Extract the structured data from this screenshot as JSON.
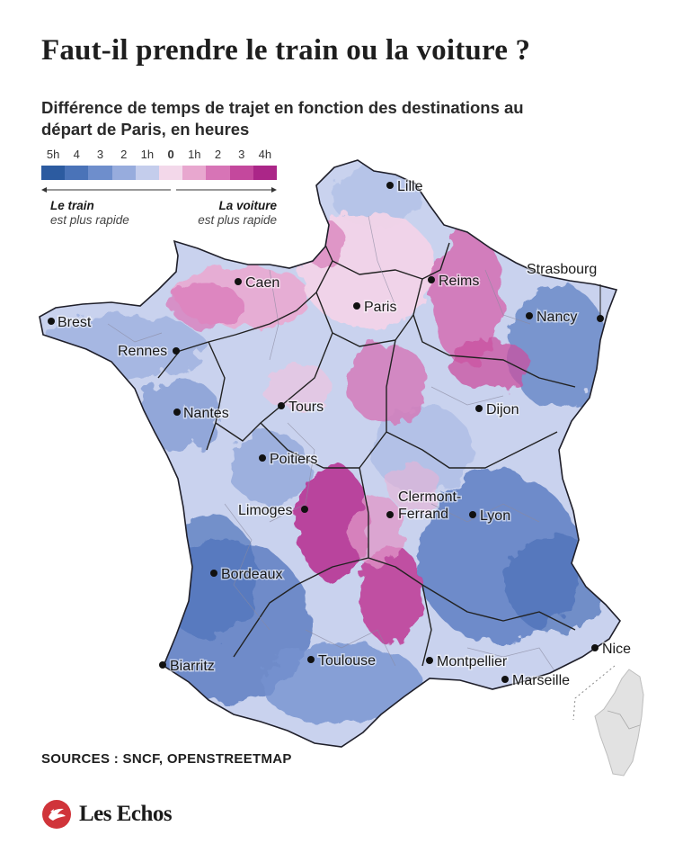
{
  "title": "Faut-il prendre le train ou la voiture ?",
  "subtitle": "Différence de temps de trajet en fonction des destinations au départ de Paris, en heures",
  "legend": {
    "ticks": [
      "5h",
      "4",
      "3",
      "2",
      "1h",
      "0",
      "1h",
      "2",
      "3",
      "4h"
    ],
    "colors": [
      "#2c5ba0",
      "#4a73b8",
      "#6e8ecc",
      "#97acdd",
      "#c4cdec",
      "#f3d8ea",
      "#e8a7cf",
      "#d774b6",
      "#c4489d",
      "#ab2688"
    ],
    "left_caption_bold": "Le train",
    "left_caption": "est plus rapide",
    "right_caption_bold": "La voiture",
    "right_caption": "est plus rapide"
  },
  "map": {
    "cities": [
      {
        "name": "Lille"
      },
      {
        "name": "Caen"
      },
      {
        "name": "Reims"
      },
      {
        "name": "Strasbourg"
      },
      {
        "name": "Brest"
      },
      {
        "name": "Paris"
      },
      {
        "name": "Nancy"
      },
      {
        "name": "Rennes"
      },
      {
        "name": "Tours"
      },
      {
        "name": "Nantes"
      },
      {
        "name": "Dijon"
      },
      {
        "name": "Poitiers"
      },
      {
        "name": "Clermont-\nFerrand"
      },
      {
        "name": "Limoges"
      },
      {
        "name": "Lyon"
      },
      {
        "name": "Bordeaux"
      },
      {
        "name": "Nice"
      },
      {
        "name": "Biarritz"
      },
      {
        "name": "Toulouse"
      },
      {
        "name": "Montpellier"
      },
      {
        "name": "Marseille"
      }
    ]
  },
  "sources": "SOURCES : SNCF, OPENSTREETMAP",
  "brand": "Les Echos"
}
